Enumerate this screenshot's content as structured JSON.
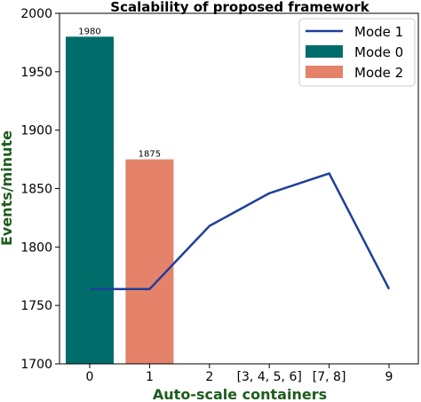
{
  "chart_data": {
    "type": "bar+line",
    "title": "Scalability of proposed framework",
    "xlabel": "Auto-scale containers",
    "ylabel": "Events/minute",
    "categories": [
      "0",
      "1",
      "2",
      "[3, 4, 5, 6]",
      "[7, 8]",
      "9"
    ],
    "ylim": [
      1700,
      2000
    ],
    "yticks": [
      1700,
      1750,
      1800,
      1850,
      1900,
      1950,
      2000
    ],
    "grid": false,
    "legend_position": "top-right",
    "bars": [
      {
        "name": "Mode 0",
        "category": "0",
        "value": 1980,
        "label": "1980",
        "color": "#006d6a"
      },
      {
        "name": "Mode 2",
        "category": "1",
        "value": 1875,
        "label": "1875",
        "color": "#e5826a"
      }
    ],
    "series": [
      {
        "name": "Mode 1",
        "type": "line",
        "color": "#1f3f99",
        "values": [
          1764,
          1764,
          1818,
          1846,
          1863,
          1764
        ]
      }
    ],
    "legend": [
      "Mode 1",
      "Mode 0",
      "Mode 2"
    ]
  }
}
